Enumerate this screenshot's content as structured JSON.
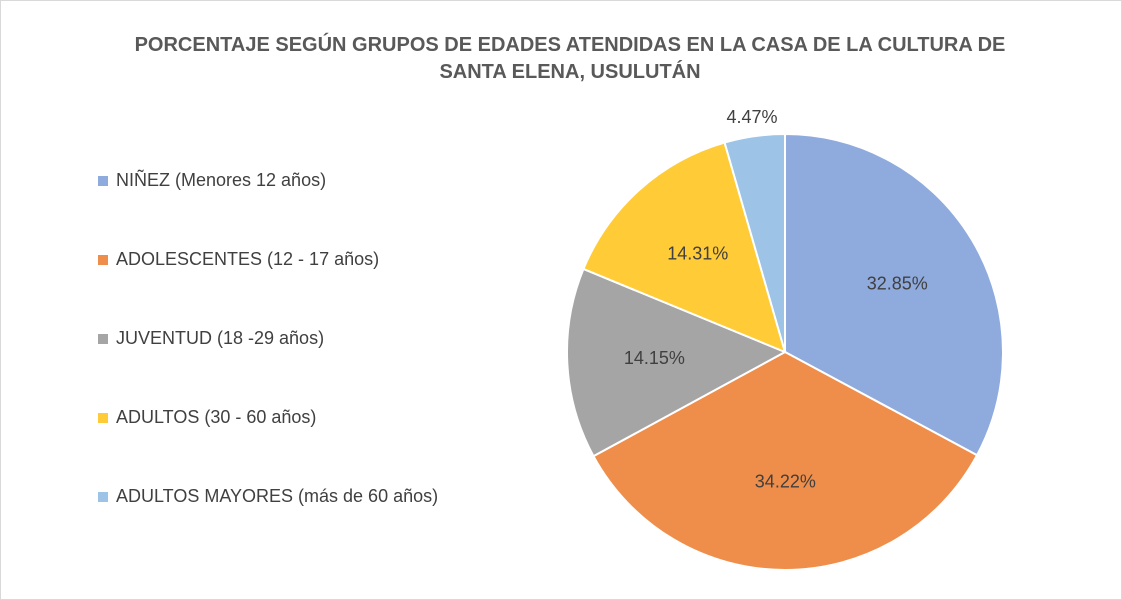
{
  "chart_data": {
    "type": "pie",
    "title": "PORCENTAJE SEGÚN GRUPOS DE EDADES ATENDIDAS EN LA CASA DE LA CULTURA DE SANTA ELENA, USULUTÁN",
    "categories": [
      "NIÑEZ (Menores 12 años)",
      "ADOLESCENTES (12 - 17 años)",
      "JUVENTUD (18 -29 años)",
      "ADULTOS (30 - 60 años)",
      "ADULTOS MAYORES (más de 60 años)"
    ],
    "values": [
      32.85,
      34.22,
      14.15,
      14.31,
      4.47
    ],
    "value_labels": [
      "32.85%",
      "34.22%",
      "14.15%",
      "14.31%",
      "4.47%"
    ],
    "colors": [
      "#8faadc",
      "#ef8e4a",
      "#a5a5a5",
      "#ffcb37",
      "#9dc3e6"
    ],
    "legend": "left"
  }
}
